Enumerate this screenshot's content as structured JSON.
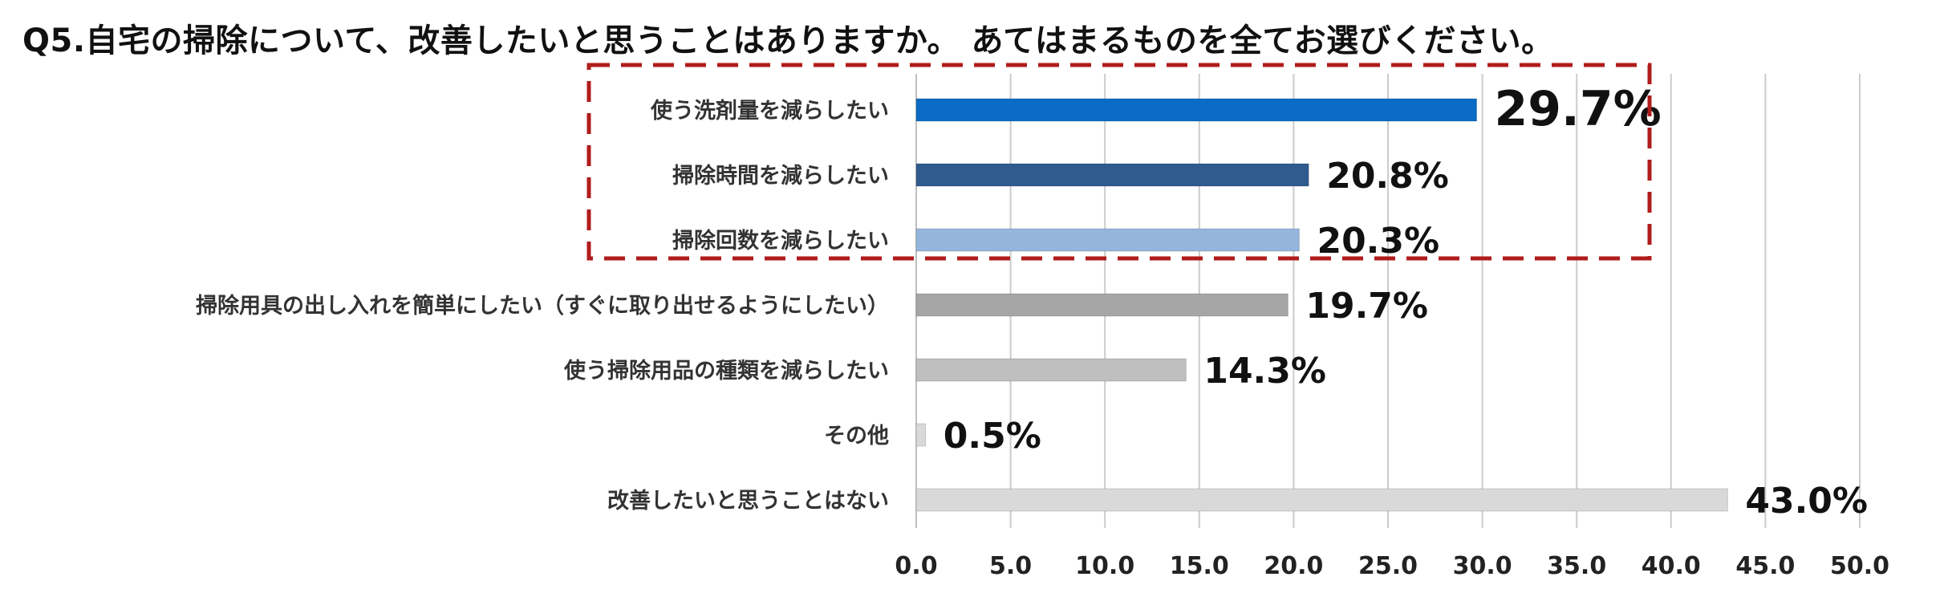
{
  "chart_data": {
    "type": "bar",
    "orientation": "horizontal",
    "title": "Q5.自宅の掃除について、改善したいと思うことはありますか。 あてはまるものを全てお選びください。",
    "categories": [
      "使う洗剤量を減らしたい",
      "掃除時間を減らしたい",
      "掃除回数を減らしたい",
      "掃除用具の出し入れを簡単にしたい（すぐに取り出せるようにしたい）",
      "使う掃除用品の種類を減らしたい",
      "その他",
      "改善したいと思うことはない"
    ],
    "values": [
      29.7,
      20.8,
      20.3,
      19.7,
      14.3,
      0.5,
      43.0
    ],
    "data_labels": [
      "29.7%",
      "20.8%",
      "20.3%",
      "19.7%",
      "14.3%",
      "0.5%",
      "43.0%"
    ],
    "bar_colors": [
      "#0a6cc4",
      "#2f5b8f",
      "#94b6dc",
      "#a6a6a6",
      "#bfbfbf",
      "#d9d9d9",
      "#d9d9d9"
    ],
    "xlim": [
      0,
      50
    ],
    "xticks": [
      "0.0",
      "5.0",
      "10.0",
      "15.0",
      "20.0",
      "25.0",
      "30.0",
      "35.0",
      "40.0",
      "45.0",
      "50.0"
    ],
    "grid": true,
    "xlabel": "",
    "ylabel": "",
    "highlight_box": {
      "categories": [
        0,
        1,
        2
      ],
      "color": "#b01c1c",
      "style": "dashed"
    }
  }
}
